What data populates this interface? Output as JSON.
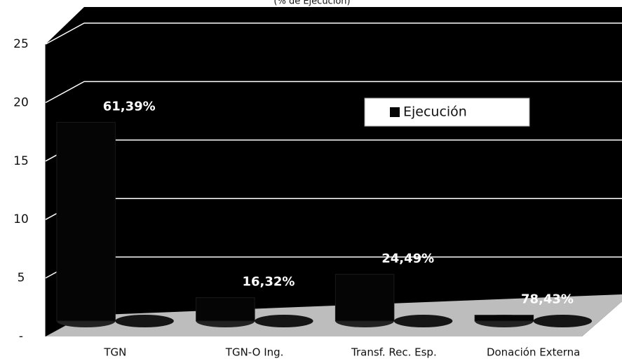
{
  "chart_data": {
    "type": "bar3d",
    "subtitle": "(% de Ejecución)",
    "categories": [
      "TGN",
      "TGN-O Ing.",
      "Transf. Rec. Esp.",
      "Donación Externa"
    ],
    "series": [
      {
        "name": "Ejecución",
        "color": "#050505",
        "values": [
          17,
          2,
          4,
          0.5
        ]
      }
    ],
    "data_labels": [
      "61,39%",
      "16,32%",
      "24,49%",
      "78,43%"
    ],
    "ylim": [
      0,
      25
    ],
    "yticks": [
      {
        "value": 0,
        "label": "-"
      },
      5,
      10,
      15,
      20,
      25
    ],
    "grid": true,
    "legend": "top-right"
  }
}
